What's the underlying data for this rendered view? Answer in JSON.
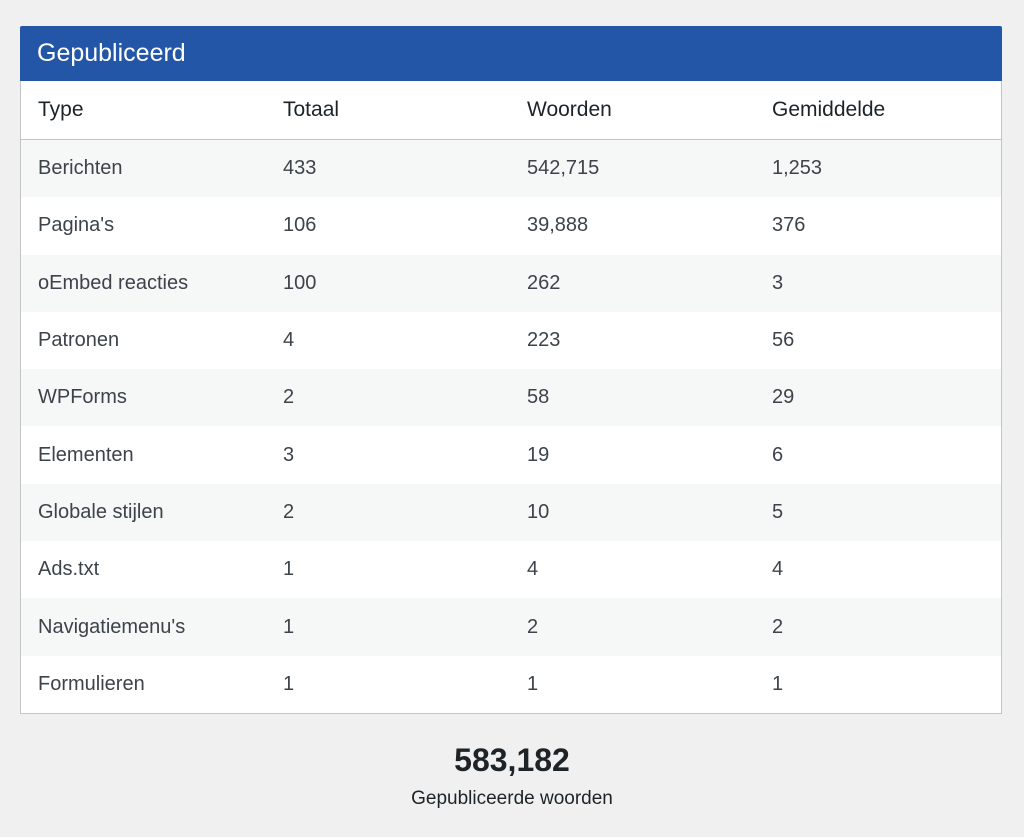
{
  "panel": {
    "title": "Gepubliceerd"
  },
  "table": {
    "headers": [
      "Type",
      "Totaal",
      "Woorden",
      "Gemiddelde"
    ],
    "rows": [
      [
        "Berichten",
        "433",
        "542,715",
        "1,253"
      ],
      [
        "Pagina's",
        "106",
        "39,888",
        "376"
      ],
      [
        "oEmbed reacties",
        "100",
        "262",
        "3"
      ],
      [
        "Patronen",
        "4",
        "223",
        "56"
      ],
      [
        "WPForms",
        "2",
        "58",
        "29"
      ],
      [
        "Elementen",
        "3",
        "19",
        "6"
      ],
      [
        "Globale stijlen",
        "2",
        "10",
        "5"
      ],
      [
        "Ads.txt",
        "1",
        "4",
        "4"
      ],
      [
        "Navigatiemenu's",
        "1",
        "2",
        "2"
      ],
      [
        "Formulieren",
        "1",
        "1",
        "1"
      ]
    ]
  },
  "summary": {
    "total_words": "583,182",
    "label": "Gepubliceerde woorden"
  },
  "colors": {
    "header_bg": "#2356a7",
    "row_alt_bg": "#f6f7f7",
    "page_bg": "#f0f0f1"
  }
}
